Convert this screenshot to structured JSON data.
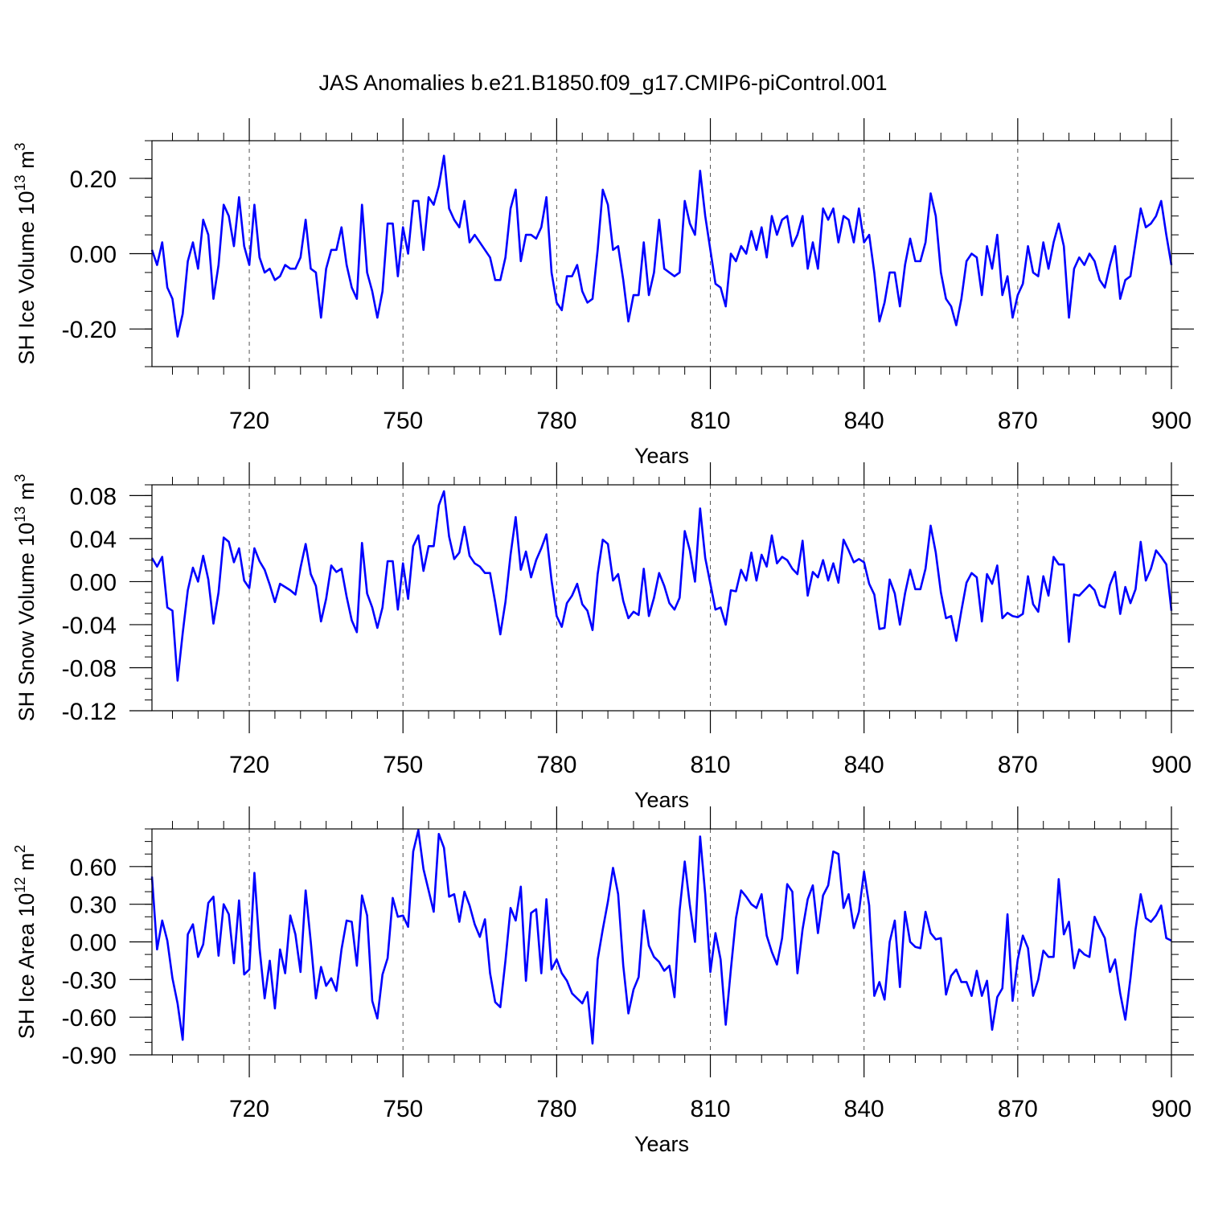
{
  "title": "JAS Anomalies b.e21.B1850.f09_g17.CMIP6-piControl.001",
  "line_color": "#0000ff",
  "chart_data": [
    {
      "type": "line",
      "ylabel": "SH Ice Volume 10",
      "ylabel_exp": "13",
      "ylabel_unit": " m",
      "ylabel_unit_exp": "3",
      "xlabel": "Years",
      "xlim": [
        701,
        900
      ],
      "ylim": [
        -0.3,
        0.3
      ],
      "xticks": [
        720,
        750,
        780,
        810,
        840,
        870,
        900
      ],
      "xtick_labels": [
        "720",
        "750",
        "780",
        "810",
        "840",
        "870",
        "900"
      ],
      "yticks": [
        0.2,
        0.0,
        -0.2
      ],
      "ytick_labels": [
        "0.20",
        "0.00",
        "-0.20"
      ],
      "yminor_step": 0.05,
      "series": [
        {
          "name": "SH Ice Volume",
          "x_start": 701,
          "values": [
            0.01,
            -0.03,
            0.03,
            -0.09,
            -0.12,
            -0.22,
            -0.16,
            -0.02,
            0.03,
            -0.04,
            0.09,
            0.05,
            -0.12,
            -0.03,
            0.13,
            0.1,
            0.02,
            0.15,
            0.02,
            -0.03,
            0.13,
            -0.01,
            -0.05,
            -0.04,
            -0.07,
            -0.06,
            -0.03,
            -0.04,
            -0.04,
            -0.01,
            0.09,
            -0.04,
            -0.05,
            -0.17,
            -0.04,
            0.01,
            0.01,
            0.07,
            -0.03,
            -0.09,
            -0.12,
            0.13,
            -0.05,
            -0.1,
            -0.17,
            -0.1,
            0.08,
            0.08,
            -0.06,
            0.07,
            0.0,
            0.14,
            0.14,
            0.01,
            0.15,
            0.13,
            0.18,
            0.26,
            0.12,
            0.09,
            0.07,
            0.14,
            0.03,
            0.05,
            0.03,
            0.01,
            -0.01,
            -0.07,
            -0.07,
            -0.01,
            0.12,
            0.17,
            -0.02,
            0.05,
            0.05,
            0.04,
            0.07,
            0.15,
            -0.05,
            -0.13,
            -0.15,
            -0.06,
            -0.06,
            -0.03,
            -0.1,
            -0.13,
            -0.12,
            0.01,
            0.17,
            0.13,
            0.01,
            0.02,
            -0.07,
            -0.18,
            -0.11,
            -0.11,
            0.03,
            -0.11,
            -0.05,
            0.09,
            -0.04,
            -0.05,
            -0.06,
            -0.05,
            0.14,
            0.08,
            0.05,
            0.22,
            0.1,
            0.01,
            -0.08,
            -0.09,
            -0.14,
            0.0,
            -0.02,
            0.02,
            0.0,
            0.06,
            0.01,
            0.07,
            -0.01,
            0.1,
            0.05,
            0.09,
            0.1,
            0.02,
            0.05,
            0.1,
            -0.04,
            0.03,
            -0.04,
            0.12,
            0.09,
            0.12,
            0.03,
            0.1,
            0.09,
            0.03,
            0.12,
            0.03,
            0.05,
            -0.05,
            -0.18,
            -0.13,
            -0.05,
            -0.05,
            -0.14,
            -0.03,
            0.04,
            -0.02,
            -0.02,
            0.03,
            0.16,
            0.1,
            -0.05,
            -0.12,
            -0.14,
            -0.19,
            -0.12,
            -0.02,
            0.0,
            -0.01,
            -0.11,
            0.02,
            -0.04,
            0.05,
            -0.11,
            -0.06,
            -0.17,
            -0.11,
            -0.08,
            0.02,
            -0.05,
            -0.06,
            0.03,
            -0.04,
            0.03,
            0.08,
            0.02,
            -0.17,
            -0.04,
            -0.01,
            -0.03,
            0.0,
            -0.02,
            -0.07,
            -0.09,
            -0.03,
            0.02,
            -0.12,
            -0.07,
            -0.06,
            0.03,
            0.12,
            0.07,
            0.08,
            0.1,
            0.14,
            0.05,
            -0.03
          ]
        }
      ]
    },
    {
      "type": "line",
      "ylabel": "SH Snow Volume 10",
      "ylabel_exp": "13",
      "ylabel_unit": " m",
      "ylabel_unit_exp": "3",
      "xlabel": "Years",
      "xlim": [
        701,
        900
      ],
      "ylim": [
        -0.12,
        0.09
      ],
      "xticks": [
        720,
        750,
        780,
        810,
        840,
        870,
        900
      ],
      "xtick_labels": [
        "720",
        "750",
        "780",
        "810",
        "840",
        "870",
        "900"
      ],
      "yticks": [
        0.08,
        0.04,
        0.0,
        -0.04,
        -0.08,
        -0.12
      ],
      "ytick_labels": [
        "0.08",
        "0.04",
        "0.00",
        "-0.04",
        "-0.08",
        "-0.12"
      ],
      "yminor_step": 0.01,
      "series": [
        {
          "name": "SH Snow Volume",
          "x_start": 701,
          "values": [
            0.022,
            0.014,
            0.023,
            -0.024,
            -0.027,
            -0.092,
            -0.048,
            -0.008,
            0.013,
            0.0,
            0.024,
            0.002,
            -0.039,
            -0.01,
            0.041,
            0.037,
            0.018,
            0.031,
            0.001,
            -0.006,
            0.031,
            0.019,
            0.011,
            -0.003,
            -0.019,
            -0.002,
            -0.005,
            -0.008,
            -0.012,
            0.013,
            0.035,
            0.007,
            -0.004,
            -0.037,
            -0.016,
            0.015,
            0.009,
            0.012,
            -0.014,
            -0.036,
            -0.047,
            0.036,
            -0.011,
            -0.024,
            -0.043,
            -0.024,
            0.019,
            0.019,
            -0.026,
            0.017,
            -0.016,
            0.033,
            0.043,
            0.01,
            0.033,
            0.033,
            0.071,
            0.084,
            0.042,
            0.021,
            0.027,
            0.051,
            0.024,
            0.017,
            0.014,
            0.008,
            0.008,
            -0.019,
            -0.049,
            -0.019,
            0.025,
            0.06,
            0.011,
            0.028,
            0.004,
            0.02,
            0.031,
            0.044,
            0.001,
            -0.032,
            -0.042,
            -0.02,
            -0.013,
            -0.002,
            -0.021,
            -0.027,
            -0.045,
            0.007,
            0.039,
            0.035,
            0.001,
            0.007,
            -0.018,
            -0.034,
            -0.028,
            -0.031,
            0.012,
            -0.032,
            -0.015,
            0.008,
            -0.004,
            -0.02,
            -0.026,
            -0.015,
            0.047,
            0.029,
            0.0,
            0.068,
            0.022,
            -0.002,
            -0.026,
            -0.024,
            -0.04,
            -0.008,
            -0.009,
            0.011,
            0.001,
            0.027,
            0.001,
            0.025,
            0.014,
            0.043,
            0.017,
            0.023,
            0.02,
            0.012,
            0.007,
            0.038,
            -0.013,
            0.009,
            0.004,
            0.02,
            0.001,
            0.017,
            -0.001,
            0.039,
            0.029,
            0.018,
            0.021,
            0.018,
            -0.002,
            -0.012,
            -0.044,
            -0.043,
            0.002,
            -0.011,
            -0.04,
            -0.011,
            0.011,
            -0.007,
            -0.007,
            0.012,
            0.052,
            0.027,
            -0.01,
            -0.034,
            -0.032,
            -0.055,
            -0.027,
            -0.001,
            0.008,
            0.004,
            -0.037,
            0.007,
            -0.002,
            0.015,
            -0.034,
            -0.029,
            -0.032,
            -0.033,
            -0.03,
            0.005,
            -0.021,
            -0.028,
            0.005,
            -0.013,
            0.023,
            0.016,
            0.016,
            -0.056,
            -0.012,
            -0.013,
            -0.008,
            -0.003,
            -0.008,
            -0.022,
            -0.024,
            -0.003,
            0.009,
            -0.03,
            -0.005,
            -0.02,
            -0.007,
            0.037,
            0.001,
            0.012,
            0.029,
            0.023,
            0.016,
            -0.027
          ]
        }
      ]
    },
    {
      "type": "line",
      "ylabel": "SH Ice Area 10",
      "ylabel_exp": "12",
      "ylabel_unit": " m",
      "ylabel_unit_exp": "2",
      "xlabel": "Years",
      "xlim": [
        701,
        900
      ],
      "ylim": [
        -0.9,
        0.9
      ],
      "xticks": [
        720,
        750,
        780,
        810,
        840,
        870,
        900
      ],
      "xtick_labels": [
        "720",
        "750",
        "780",
        "810",
        "840",
        "870",
        "900"
      ],
      "yticks": [
        0.6,
        0.3,
        0.0,
        -0.3,
        -0.6,
        -0.9
      ],
      "ytick_labels": [
        "0.60",
        "0.30",
        "0.00",
        "-0.30",
        "-0.60",
        "-0.90"
      ],
      "yminor_step": 0.1,
      "series": [
        {
          "name": "SH Ice Area",
          "x_start": 701,
          "values": [
            0.52,
            -0.06,
            0.17,
            0.01,
            -0.29,
            -0.49,
            -0.78,
            0.06,
            0.14,
            -0.12,
            -0.02,
            0.31,
            0.36,
            -0.11,
            0.3,
            0.22,
            -0.17,
            0.33,
            -0.26,
            -0.22,
            0.55,
            -0.05,
            -0.45,
            -0.15,
            -0.53,
            -0.06,
            -0.25,
            0.21,
            0.06,
            -0.24,
            0.41,
            0.0,
            -0.45,
            -0.2,
            -0.35,
            -0.29,
            -0.39,
            -0.06,
            0.17,
            0.16,
            -0.19,
            0.37,
            0.21,
            -0.47,
            -0.61,
            -0.26,
            -0.13,
            0.35,
            0.2,
            0.21,
            0.12,
            0.72,
            0.89,
            0.58,
            0.41,
            0.24,
            0.86,
            0.75,
            0.36,
            0.38,
            0.16,
            0.4,
            0.29,
            0.14,
            0.04,
            0.18,
            -0.25,
            -0.48,
            -0.52,
            -0.15,
            0.27,
            0.17,
            0.44,
            -0.31,
            0.23,
            0.26,
            -0.25,
            0.34,
            -0.22,
            -0.14,
            -0.25,
            -0.31,
            -0.41,
            -0.45,
            -0.49,
            -0.4,
            -0.81,
            -0.14,
            0.1,
            0.32,
            0.59,
            0.38,
            -0.19,
            -0.57,
            -0.38,
            -0.28,
            0.25,
            -0.03,
            -0.12,
            -0.16,
            -0.23,
            -0.19,
            -0.44,
            0.25,
            0.64,
            0.29,
            0.0,
            0.84,
            0.38,
            -0.24,
            0.07,
            -0.14,
            -0.66,
            -0.22,
            0.19,
            0.41,
            0.36,
            0.3,
            0.27,
            0.38,
            0.05,
            -0.08,
            -0.18,
            0.03,
            0.46,
            0.4,
            -0.25,
            0.1,
            0.34,
            0.45,
            0.07,
            0.37,
            0.45,
            0.72,
            0.7,
            0.27,
            0.38,
            0.11,
            0.24,
            0.56,
            0.29,
            -0.43,
            -0.32,
            -0.46,
            0.0,
            0.17,
            -0.36,
            0.24,
            0.0,
            -0.04,
            -0.05,
            0.24,
            0.07,
            0.02,
            0.03,
            -0.42,
            -0.27,
            -0.22,
            -0.32,
            -0.32,
            -0.43,
            -0.23,
            -0.43,
            -0.31,
            -0.7,
            -0.44,
            -0.37,
            0.22,
            -0.47,
            -0.14,
            0.05,
            -0.05,
            -0.43,
            -0.3,
            -0.07,
            -0.12,
            -0.12,
            0.5,
            0.06,
            0.16,
            -0.21,
            -0.06,
            -0.1,
            -0.12,
            0.2,
            0.11,
            0.03,
            -0.24,
            -0.14,
            -0.41,
            -0.62,
            -0.29,
            0.1,
            0.38,
            0.19,
            0.16,
            0.21,
            0.29,
            0.03,
            0.01
          ]
        }
      ]
    }
  ]
}
